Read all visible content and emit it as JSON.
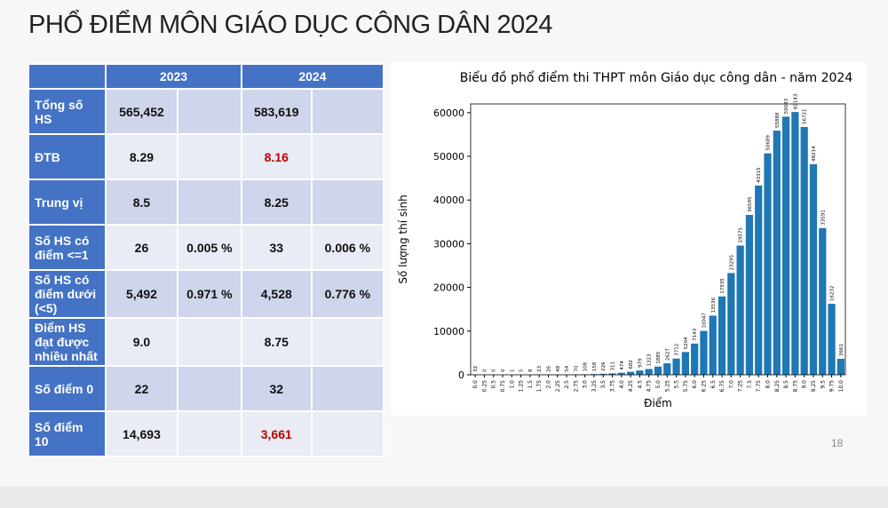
{
  "title": "PHỔ ĐIỂM MÔN GIÁO DỤC CÔNG DÂN 2024",
  "page_number": "18",
  "table": {
    "header": [
      "2023",
      "2024"
    ],
    "rows": [
      {
        "label": "Tổng số HS",
        "cells": [
          "565,452",
          null,
          "583,619",
          null
        ]
      },
      {
        "label": "ĐTB",
        "cells": [
          "8.29",
          null,
          "8.16",
          null
        ]
      },
      {
        "label": "Trung vị",
        "cells": [
          "8.5",
          null,
          "8.25",
          null
        ]
      },
      {
        "label": "Số HS có điểm <=1",
        "cells": [
          "26",
          "0.005 %",
          "33",
          "0.006 %"
        ]
      },
      {
        "label": "Số HS có điểm dưới (<5)",
        "cells": [
          "5,492",
          "0.971 %",
          "4,528",
          "0.776 %"
        ]
      },
      {
        "label": "Điểm HS đạt được nhiều nhất",
        "cells": [
          "9.0",
          null,
          "8.75",
          null
        ]
      },
      {
        "label": "Số điểm 0",
        "cells": [
          "22",
          null,
          "32",
          null
        ]
      },
      {
        "label": "Số điểm 10",
        "cells": [
          "14,693",
          null,
          "3,661",
          null
        ]
      }
    ]
  },
  "chart_data": {
    "type": "bar",
    "title": "Biểu đồ phổ điểm thi THPT môn Giáo dục công dân - năm 2024",
    "x_label": "Điểm",
    "y_label": "Số lượng thí sinh",
    "categories": [
      "0.0",
      "0.25",
      "0.5",
      "0.75",
      "1.0",
      "1.25",
      "1.5",
      "1.75",
      "2.0",
      "2.25",
      "2.5",
      "2.75",
      "3.0",
      "3.25",
      "3.5",
      "3.75",
      "4.0",
      "4.25",
      "4.5",
      "4.75",
      "5.0",
      "5.25",
      "5.5",
      "5.75",
      "6.0",
      "6.25",
      "6.5",
      "6.75",
      "7.0",
      "7.25",
      "7.5",
      "7.75",
      "8.0",
      "8.25",
      "8.5",
      "8.75",
      "9.0",
      "9.25",
      "9.5",
      "9.75",
      "10.0"
    ],
    "values": [
      32,
      0,
      0,
      0,
      1,
      5,
      8,
      23,
      26,
      48,
      54,
      70,
      108,
      158,
      226,
      311,
      474,
      682,
      979,
      1323,
      1885,
      2627,
      3712,
      5204,
      7143,
      10047,
      13536,
      17935,
      23295,
      29575,
      36595,
      43315,
      50689,
      55888,
      59083,
      60143,
      56721,
      48214,
      33591,
      16232,
      3661
    ],
    "color": "#1f77b4",
    "ylim": [
      0,
      62000
    ],
    "yticks": [
      0,
      10000,
      20000,
      30000,
      40000,
      50000,
      60000
    ]
  }
}
